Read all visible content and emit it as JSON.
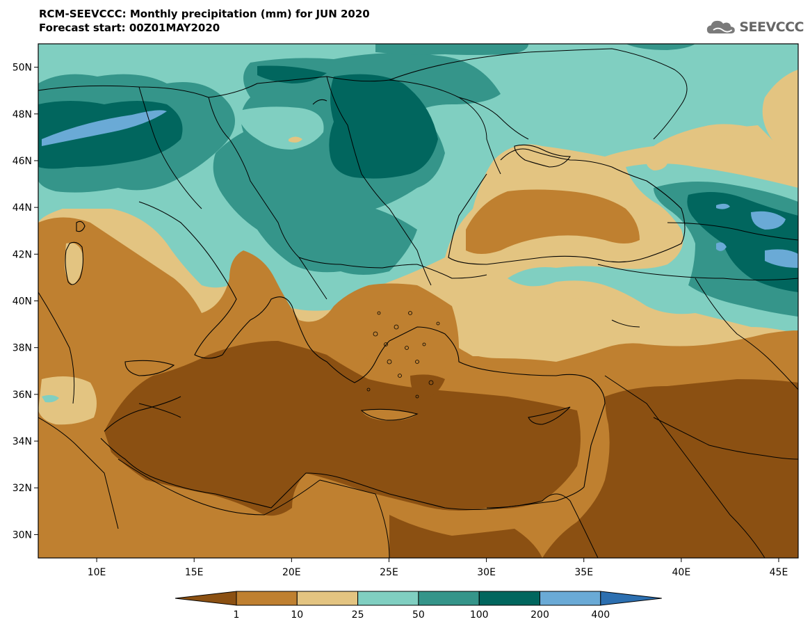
{
  "header": {
    "title_line1": "RCM-SEEVCCC: Monthly precipitation (mm) for JUN 2020",
    "title_line2": "Forecast start: 00Z01MAY2020"
  },
  "logo": {
    "text": "SEEVCCC",
    "icon": "cloud-icon"
  },
  "map": {
    "lat_range": [
      29,
      51
    ],
    "lon_range": [
      7,
      46
    ],
    "lat_labels": [
      "50N",
      "48N",
      "46N",
      "44N",
      "42N",
      "40N",
      "38N",
      "36N",
      "34N",
      "32N",
      "30N"
    ],
    "lon_labels": [
      "10E",
      "15E",
      "20E",
      "25E",
      "30E",
      "35E",
      "40E",
      "45E"
    ]
  },
  "colorbar": {
    "levels": [
      "1",
      "10",
      "25",
      "50",
      "100",
      "200",
      "400"
    ],
    "colors": [
      "#8b5012",
      "#bf8030",
      "#e3c481",
      "#80cfc1",
      "#35958a",
      "#01665e",
      "#6aaad6",
      "#2c6fb0"
    ]
  }
}
